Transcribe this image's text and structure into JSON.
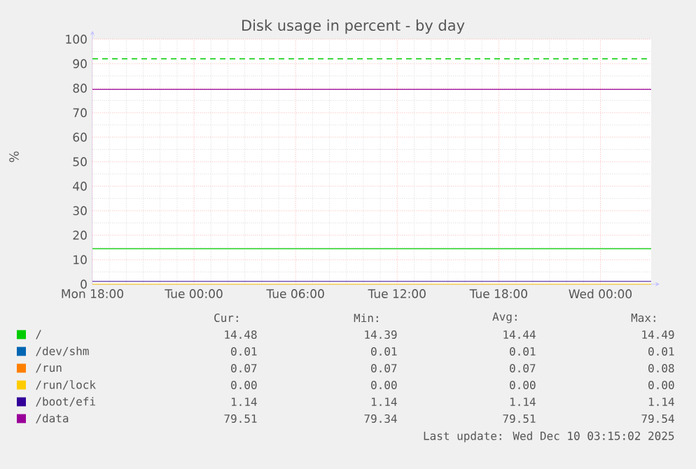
{
  "chart_data": {
    "type": "line",
    "title": "Disk usage in percent - by day",
    "ylabel": "%",
    "x": [
      "2025-12-08T18:00",
      "2025-12-10T03:00"
    ],
    "series": [
      {
        "name": "/",
        "color": "#00cc00",
        "values": [
          14.48,
          14.48
        ]
      },
      {
        "name": "/dev/shm",
        "color": "#0066b3",
        "values": [
          null,
          null
        ]
      },
      {
        "name": "/run",
        "color": "#ff8000",
        "values": [
          null,
          null
        ]
      },
      {
        "name": "/run/lock",
        "color": "#ffcc00",
        "values": [
          0.0,
          0.0
        ]
      },
      {
        "name": "/boot/efi",
        "color": "#330099",
        "values": [
          1.14,
          1.14
        ]
      },
      {
        "name": "/data",
        "color": "#990099",
        "values": [
          79.51,
          79.51
        ]
      }
    ],
    "xlim": [
      "2025-12-08T18:00",
      "2025-12-10T03:00"
    ],
    "xticks": [
      {
        "value": "2025-12-08T18:00",
        "label": "Mon 18:00"
      },
      {
        "value": "2025-12-09T00:00",
        "label": "Tue 00:00"
      },
      {
        "value": "2025-12-09T06:00",
        "label": "Tue 06:00"
      },
      {
        "value": "2025-12-09T12:00",
        "label": "Tue 12:00"
      },
      {
        "value": "2025-12-09T18:00",
        "label": "Tue 18:00"
      },
      {
        "value": "2025-12-10T00:00",
        "label": "Wed 00:00"
      }
    ],
    "ylim": [
      0,
      100
    ],
    "yticks": [
      0,
      10,
      20,
      30,
      40,
      50,
      60,
      70,
      80,
      90,
      100
    ],
    "ref_lines": [
      {
        "axis": "y",
        "value": 92,
        "color": "#00cc00",
        "line_style": "dashed"
      }
    ],
    "grid": true,
    "legend": "bottom",
    "line_style": "solid",
    "marker": "none",
    "annotations": [
      "Cur:",
      "Min:",
      "Avg:",
      "Max:",
      "14.48",
      "14.39",
      "14.44",
      "14.49",
      "0.01",
      "0.01",
      "0.01",
      "0.01",
      "0.07",
      "0.07",
      "0.07",
      "0.08",
      "0.00",
      "0.00",
      "0.00",
      "0.00",
      "1.14",
      "1.14",
      "1.14",
      "1.14",
      "79.51",
      "79.34",
      "79.51",
      "79.54",
      "Last update: Wed Dec 10 03:15:02 2025"
    ]
  }
}
